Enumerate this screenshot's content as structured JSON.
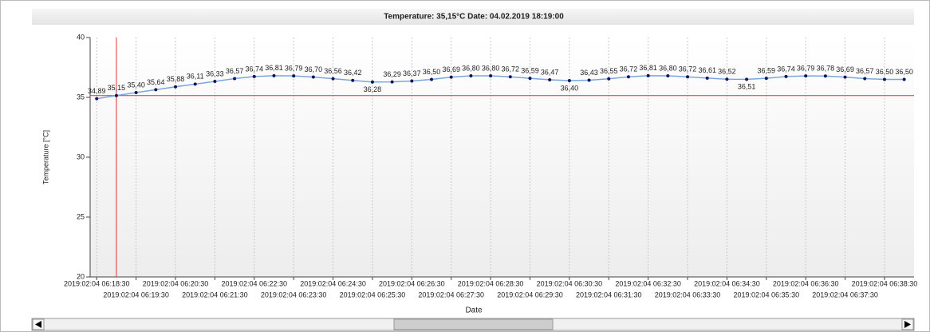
{
  "chart_data": {
    "type": "line",
    "title": "Temperature: 35,15°C   Date: 04.02.2019   18:19:00",
    "x_label": "Date",
    "y_label": "Temperature [°C]",
    "x": [
      "2019:02:04 06:18:30",
      "2019:02:04 06:19:00",
      "2019:02:04 06:19:30",
      "2019:02:04 06:20:00",
      "2019:02:04 06:20:30",
      "2019:02:04 06:21:00",
      "2019:02:04 06:21:30",
      "2019:02:04 06:22:00",
      "2019:02:04 06:22:30",
      "2019:02:04 06:23:00",
      "2019:02:04 06:23:30",
      "2019:02:04 06:24:00",
      "2019:02:04 06:24:30",
      "2019:02:04 06:25:00",
      "2019:02:04 06:25:30",
      "2019:02:04 06:26:00",
      "2019:02:04 06:26:30",
      "2019:02:04 06:27:00",
      "2019:02:04 06:27:30",
      "2019:02:04 06:28:00",
      "2019:02:04 06:28:30",
      "2019:02:04 06:29:00",
      "2019:02:04 06:29:30",
      "2019:02:04 06:30:00",
      "2019:02:04 06:30:30",
      "2019:02:04 06:31:00",
      "2019:02:04 06:31:30",
      "2019:02:04 06:32:00",
      "2019:02:04 06:32:30",
      "2019:02:04 06:33:00",
      "2019:02:04 06:33:30",
      "2019:02:04 06:34:00",
      "2019:02:04 06:34:30",
      "2019:02:04 06:35:00",
      "2019:02:04 06:35:30",
      "2019:02:04 06:36:00",
      "2019:02:04 06:36:30",
      "2019:02:04 06:37:00",
      "2019:02:04 06:37:30",
      "2019:02:04 06:38:00",
      "2019:02:04 06:38:30",
      "2019:02:04 06:39:00"
    ],
    "series": [
      {
        "name": "Temperature",
        "color": "#7aa6dc",
        "marker_color": "#14145e",
        "values": [
          34.89,
          35.15,
          35.4,
          35.64,
          35.88,
          36.11,
          36.33,
          36.57,
          36.74,
          36.81,
          36.79,
          36.7,
          36.56,
          36.42,
          36.28,
          36.29,
          36.37,
          36.5,
          36.69,
          36.8,
          36.8,
          36.72,
          36.59,
          36.47,
          36.4,
          36.43,
          36.55,
          36.72,
          36.81,
          36.8,
          36.72,
          36.61,
          36.52,
          36.51,
          36.59,
          36.74,
          36.79,
          36.78,
          36.69,
          36.57,
          36.5,
          36.5
        ],
        "value_labels": [
          "34,89",
          "35,15",
          "35,40",
          "35,64",
          "35,88",
          "36,11",
          "36,33",
          "36,57",
          "36,74",
          "36,81",
          "36,79",
          "36,70",
          "36,56",
          "36,42",
          "36,28",
          "36,29",
          "36,37",
          "36,50",
          "36,69",
          "36,80",
          "36,80",
          "36,72",
          "36,59",
          "36,47",
          "36,40",
          "36,43",
          "36,55",
          "36,72",
          "36,81",
          "36,80",
          "36,72",
          "36,61",
          "36,52",
          "36,51",
          "36,59",
          "36,74",
          "36,79",
          "36,78",
          "36,69",
          "36,57",
          "36,50",
          "36,50"
        ]
      }
    ],
    "xlim": [
      "2019:02:04 06:18:20",
      "2019:02:04 06:39:15"
    ],
    "xticks": [
      "2019:02:04 06:18:30",
      "2019:02:04 06:19:30",
      "2019:02:04 06:20:30",
      "2019:02:04 06:21:30",
      "2019:02:04 06:22:30",
      "2019:02:04 06:23:30",
      "2019:02:04 06:24:30",
      "2019:02:04 06:25:30",
      "2019:02:04 06:26:30",
      "2019:02:04 06:27:30",
      "2019:02:04 06:28:30",
      "2019:02:04 06:29:30",
      "2019:02:04 06:30:30",
      "2019:02:04 06:31:30",
      "2019:02:04 06:32:30",
      "2019:02:04 06:33:30",
      "2019:02:04 06:34:30",
      "2019:02:04 06:35:30",
      "2019:02:04 06:36:30",
      "2019:02:04 06:37:30",
      "2019:02:04 06:38:30"
    ],
    "ylim": [
      20,
      40
    ],
    "yticks": [
      20,
      25,
      30,
      35,
      40
    ],
    "grid": "x",
    "cursor": {
      "x": "2019:02:04 06:19:00",
      "y": 35.15,
      "color": "#e03030"
    }
  }
}
